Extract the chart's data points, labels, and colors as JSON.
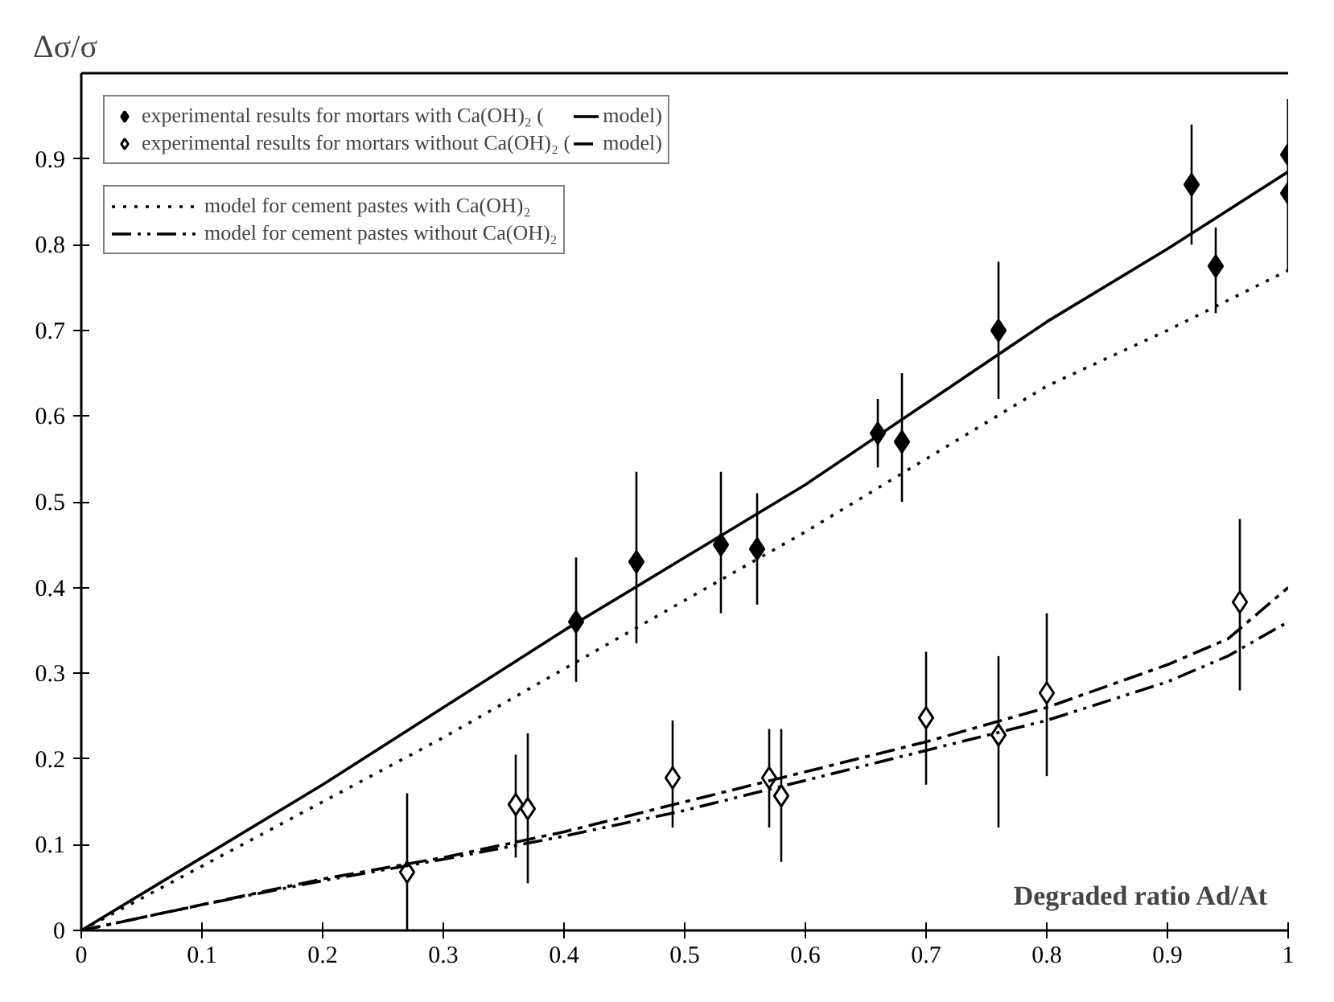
{
  "chart_data": {
    "type": "line",
    "ylabel": "Δσ/σ",
    "xlabel": "Degraded ratio Ad/At",
    "xlim": [
      0,
      1
    ],
    "ylim": [
      0,
      1
    ],
    "xticks": [
      0,
      0.1,
      0.2,
      0.3,
      0.4,
      0.5,
      0.6,
      0.7,
      0.8,
      0.9,
      1
    ],
    "yticks": [
      0,
      0.1,
      0.2,
      0.3,
      0.4,
      0.5,
      0.6,
      0.7,
      0.8,
      0.9
    ],
    "grid": false,
    "legend": "top left",
    "series": [
      {
        "name": "experimental results for mortars with Ca(OH)₂ (",
        "type": "scatter",
        "marker": "diamond",
        "color": "#000000",
        "x": [
          0.41,
          0.46,
          0.53,
          0.56,
          0.66,
          0.68,
          0.76,
          0.92,
          0.94,
          1.0,
          1.0
        ],
        "values": [
          0.36,
          0.43,
          0.45,
          0.445,
          0.58,
          0.57,
          0.7,
          0.87,
          0.775,
          0.905,
          0.86
        ],
        "errors": [
          [
            0.29,
            0.435
          ],
          [
            0.335,
            0.535
          ],
          [
            0.37,
            0.535
          ],
          [
            0.38,
            0.51
          ],
          [
            0.54,
            0.62
          ],
          [
            0.5,
            0.65
          ],
          [
            0.62,
            0.78
          ],
          [
            0.8,
            0.94
          ],
          [
            0.72,
            0.82
          ],
          [
            0.77,
            0.97
          ],
          [
            0.77,
            0.97
          ]
        ]
      },
      {
        "name": "model)",
        "line_style": "solid",
        "color": "#000000",
        "x": [
          0,
          0.1,
          0.2,
          0.3,
          0.4,
          0.5,
          0.6,
          0.7,
          0.8,
          0.9,
          1.0
        ],
        "values": [
          0,
          0.085,
          0.17,
          0.26,
          0.35,
          0.435,
          0.52,
          0.615,
          0.71,
          0.795,
          0.885
        ]
      },
      {
        "name": "experimental results for mortars without Ca(OH)₂ (",
        "type": "scatter",
        "marker": "diamond",
        "color": "#ffffff",
        "x": [
          0.27,
          0.36,
          0.37,
          0.49,
          0.57,
          0.58,
          0.7,
          0.76,
          0.8,
          0.96
        ],
        "values": [
          0.068,
          0.147,
          0.142,
          0.178,
          0.178,
          0.157,
          0.248,
          0.228,
          0.277,
          0.383
        ],
        "errors": [
          [
            0,
            0.16
          ],
          [
            0.085,
            0.205
          ],
          [
            0.055,
            0.23
          ],
          [
            0.12,
            0.245
          ],
          [
            0.12,
            0.235
          ],
          [
            0.08,
            0.235
          ],
          [
            0.17,
            0.325
          ],
          [
            0.12,
            0.32
          ],
          [
            0.18,
            0.37
          ],
          [
            0.28,
            0.48
          ]
        ]
      },
      {
        "name": "model)",
        "line_style": "dashdot",
        "color": "#000000",
        "x": [
          0,
          0.1,
          0.2,
          0.3,
          0.4,
          0.5,
          0.6,
          0.7,
          0.8,
          0.9,
          0.95,
          1.0
        ],
        "values": [
          0,
          0.03,
          0.06,
          0.085,
          0.115,
          0.15,
          0.185,
          0.22,
          0.26,
          0.31,
          0.34,
          0.4
        ]
      },
      {
        "name": "model for cement pastes with Ca(OH)₂",
        "line_style": "dotted",
        "color": "#000000",
        "x": [
          0,
          0.1,
          0.2,
          0.3,
          0.4,
          0.5,
          0.6,
          0.7,
          0.8,
          0.9,
          1.0
        ],
        "values": [
          0,
          0.075,
          0.15,
          0.225,
          0.305,
          0.385,
          0.465,
          0.55,
          0.635,
          0.7,
          0.77
        ]
      },
      {
        "name": "model for cement pastes without Ca(OH)₂",
        "line_style": "dashdotdot",
        "color": "#000000",
        "x": [
          0,
          0.1,
          0.2,
          0.3,
          0.4,
          0.5,
          0.6,
          0.7,
          0.8,
          0.9,
          0.95,
          1.0
        ],
        "values": [
          0,
          0.03,
          0.058,
          0.083,
          0.11,
          0.14,
          0.175,
          0.21,
          0.245,
          0.29,
          0.32,
          0.36
        ]
      }
    ]
  }
}
